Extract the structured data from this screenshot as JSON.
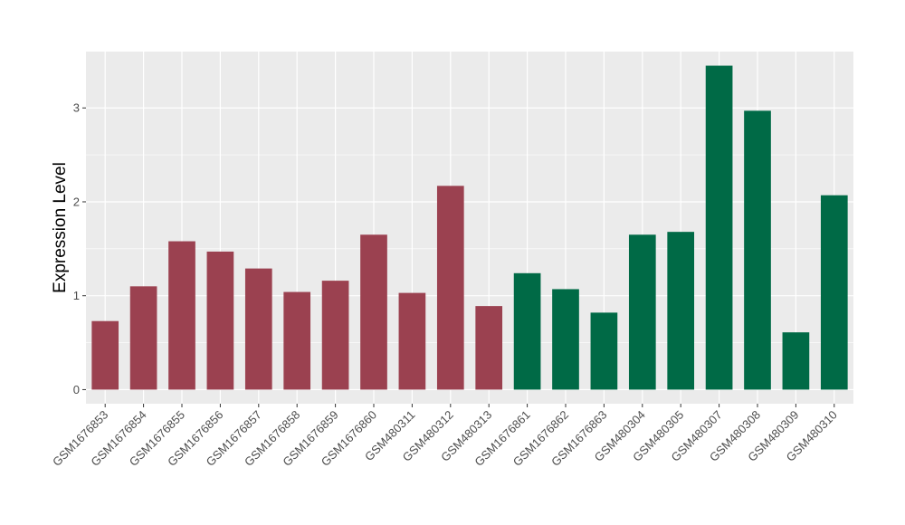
{
  "chart_data": {
    "type": "bar",
    "title": "",
    "xlabel": "",
    "ylabel": "Expression Level",
    "ylim": [
      -0.15,
      3.6
    ],
    "yticks": [
      0,
      1,
      2,
      3
    ],
    "grid": true,
    "legend": "none",
    "categories": [
      "GSM1676853",
      "GSM1676854",
      "GSM1676855",
      "GSM1676856",
      "GSM1676857",
      "GSM1676858",
      "GSM1676859",
      "GSM1676860",
      "GSM480311",
      "GSM480312",
      "GSM480313",
      "GSM1676861",
      "GSM1676862",
      "GSM1676863",
      "GSM480304",
      "GSM480305",
      "GSM480307",
      "GSM480308",
      "GSM480309",
      "GSM480310"
    ],
    "values": [
      0.73,
      1.1,
      1.58,
      1.47,
      1.29,
      1.04,
      1.16,
      1.65,
      1.03,
      2.17,
      0.89,
      1.24,
      1.07,
      0.82,
      1.65,
      1.68,
      3.45,
      2.97,
      0.61,
      2.07
    ],
    "group_index": [
      0,
      0,
      0,
      0,
      0,
      0,
      0,
      0,
      0,
      0,
      0,
      1,
      1,
      1,
      1,
      1,
      1,
      1,
      1,
      1
    ],
    "group_colors": [
      "#9b4150",
      "#006a46"
    ],
    "panel_background": "#ebebeb",
    "gridline_color": "#ffffff"
  }
}
